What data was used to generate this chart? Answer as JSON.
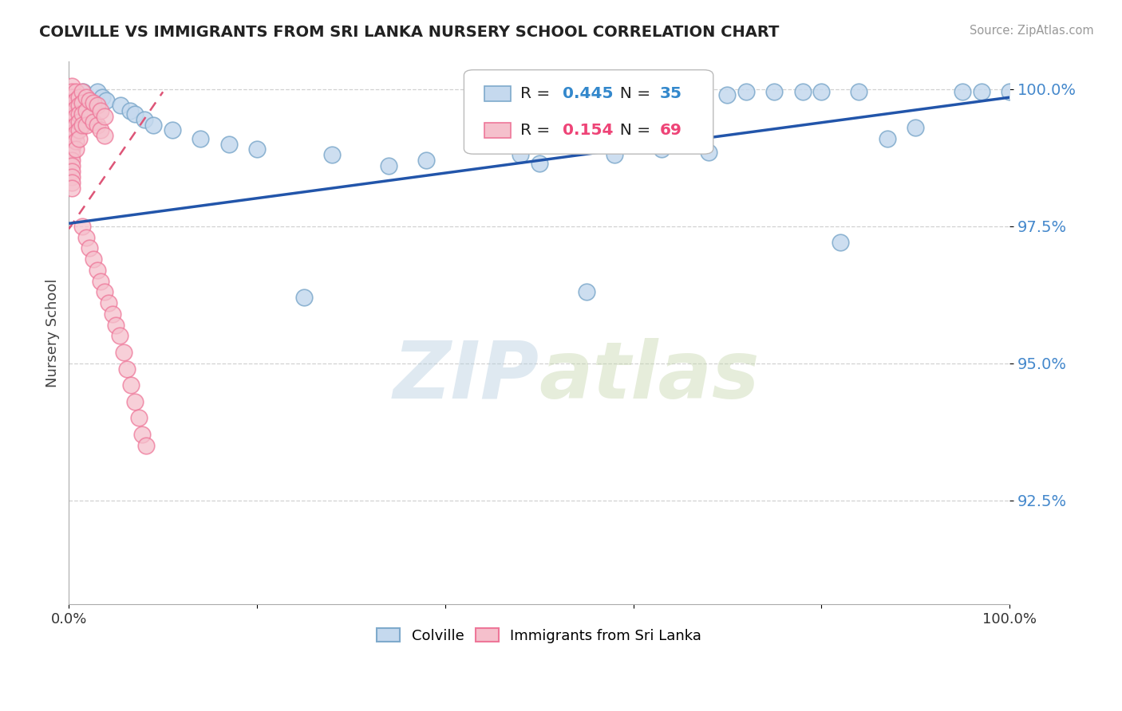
{
  "title": "COLVILLE VS IMMIGRANTS FROM SRI LANKA NURSERY SCHOOL CORRELATION CHART",
  "source_text": "Source: ZipAtlas.com",
  "ylabel": "Nursery School",
  "legend_label_blue": "Colville",
  "legend_label_pink": "Immigrants from Sri Lanka",
  "R_blue": 0.445,
  "N_blue": 35,
  "R_pink": 0.154,
  "N_pink": 69,
  "xlim": [
    0.0,
    1.0
  ],
  "ylim": [
    0.906,
    1.005
  ],
  "yticks": [
    0.925,
    0.95,
    0.975,
    1.0
  ],
  "ytick_labels": [
    "92.5%",
    "95.0%",
    "97.5%",
    "100.0%"
  ],
  "xticks": [
    0.0,
    0.2,
    0.4,
    0.6,
    0.8,
    1.0
  ],
  "xtick_labels": [
    "0.0%",
    "",
    "",
    "",
    "",
    "100.0%"
  ],
  "watermark_zip": "ZIP",
  "watermark_atlas": "atlas",
  "blue_color": "#7faacc",
  "pink_color": "#ee7799",
  "blue_fill": "#c5d9ee",
  "pink_fill": "#f5c0cc",
  "blue_scatter": [
    [
      0.015,
      0.9995
    ],
    [
      0.03,
      0.9995
    ],
    [
      0.035,
      0.9985
    ],
    [
      0.04,
      0.998
    ],
    [
      0.055,
      0.997
    ],
    [
      0.065,
      0.996
    ],
    [
      0.07,
      0.9955
    ],
    [
      0.08,
      0.9945
    ],
    [
      0.09,
      0.9935
    ],
    [
      0.11,
      0.9925
    ],
    [
      0.14,
      0.991
    ],
    [
      0.17,
      0.99
    ],
    [
      0.2,
      0.989
    ],
    [
      0.28,
      0.988
    ],
    [
      0.34,
      0.986
    ],
    [
      0.38,
      0.987
    ],
    [
      0.48,
      0.988
    ],
    [
      0.5,
      0.9865
    ],
    [
      0.58,
      0.988
    ],
    [
      0.63,
      0.989
    ],
    [
      0.68,
      0.9885
    ],
    [
      0.7,
      0.999
    ],
    [
      0.72,
      0.9995
    ],
    [
      0.75,
      0.9995
    ],
    [
      0.78,
      0.9995
    ],
    [
      0.8,
      0.9995
    ],
    [
      0.84,
      0.9995
    ],
    [
      0.87,
      0.991
    ],
    [
      0.9,
      0.993
    ],
    [
      0.95,
      0.9995
    ],
    [
      0.97,
      0.9995
    ],
    [
      1.0,
      0.9995
    ],
    [
      0.25,
      0.962
    ],
    [
      0.55,
      0.963
    ],
    [
      0.82,
      0.972
    ]
  ],
  "pink_scatter": [
    [
      0.003,
      1.0005
    ],
    [
      0.003,
      0.9995
    ],
    [
      0.003,
      0.9985
    ],
    [
      0.003,
      0.9975
    ],
    [
      0.003,
      0.9965
    ],
    [
      0.003,
      0.996
    ],
    [
      0.003,
      0.995
    ],
    [
      0.003,
      0.994
    ],
    [
      0.003,
      0.993
    ],
    [
      0.003,
      0.992
    ],
    [
      0.003,
      0.991
    ],
    [
      0.003,
      0.99
    ],
    [
      0.003,
      0.989
    ],
    [
      0.003,
      0.988
    ],
    [
      0.003,
      0.987
    ],
    [
      0.003,
      0.986
    ],
    [
      0.003,
      0.985
    ],
    [
      0.003,
      0.984
    ],
    [
      0.003,
      0.983
    ],
    [
      0.003,
      0.982
    ],
    [
      0.007,
      0.9995
    ],
    [
      0.007,
      0.998
    ],
    [
      0.007,
      0.9965
    ],
    [
      0.007,
      0.995
    ],
    [
      0.007,
      0.9935
    ],
    [
      0.007,
      0.992
    ],
    [
      0.007,
      0.9905
    ],
    [
      0.007,
      0.989
    ],
    [
      0.011,
      0.9985
    ],
    [
      0.011,
      0.997
    ],
    [
      0.011,
      0.9955
    ],
    [
      0.011,
      0.994
    ],
    [
      0.011,
      0.9925
    ],
    [
      0.011,
      0.991
    ],
    [
      0.014,
      0.9995
    ],
    [
      0.014,
      0.9975
    ],
    [
      0.014,
      0.9955
    ],
    [
      0.014,
      0.9935
    ],
    [
      0.018,
      0.9985
    ],
    [
      0.018,
      0.996
    ],
    [
      0.018,
      0.9935
    ],
    [
      0.022,
      0.998
    ],
    [
      0.022,
      0.995
    ],
    [
      0.026,
      0.9975
    ],
    [
      0.026,
      0.994
    ],
    [
      0.03,
      0.997
    ],
    [
      0.03,
      0.9935
    ],
    [
      0.034,
      0.996
    ],
    [
      0.034,
      0.9925
    ],
    [
      0.038,
      0.995
    ],
    [
      0.038,
      0.9915
    ],
    [
      0.014,
      0.975
    ],
    [
      0.018,
      0.973
    ],
    [
      0.022,
      0.971
    ],
    [
      0.026,
      0.969
    ],
    [
      0.03,
      0.967
    ],
    [
      0.034,
      0.965
    ],
    [
      0.038,
      0.963
    ],
    [
      0.042,
      0.961
    ],
    [
      0.046,
      0.959
    ],
    [
      0.05,
      0.957
    ],
    [
      0.054,
      0.955
    ],
    [
      0.058,
      0.952
    ],
    [
      0.062,
      0.949
    ],
    [
      0.066,
      0.946
    ],
    [
      0.07,
      0.943
    ],
    [
      0.074,
      0.94
    ],
    [
      0.078,
      0.937
    ],
    [
      0.082,
      0.935
    ]
  ],
  "blue_trend_x": [
    0.0,
    1.0
  ],
  "blue_trend_y": [
    0.9755,
    0.9985
  ],
  "pink_trend_x": [
    0.0,
    0.1
  ],
  "pink_trend_y": [
    0.9745,
    0.9995
  ]
}
